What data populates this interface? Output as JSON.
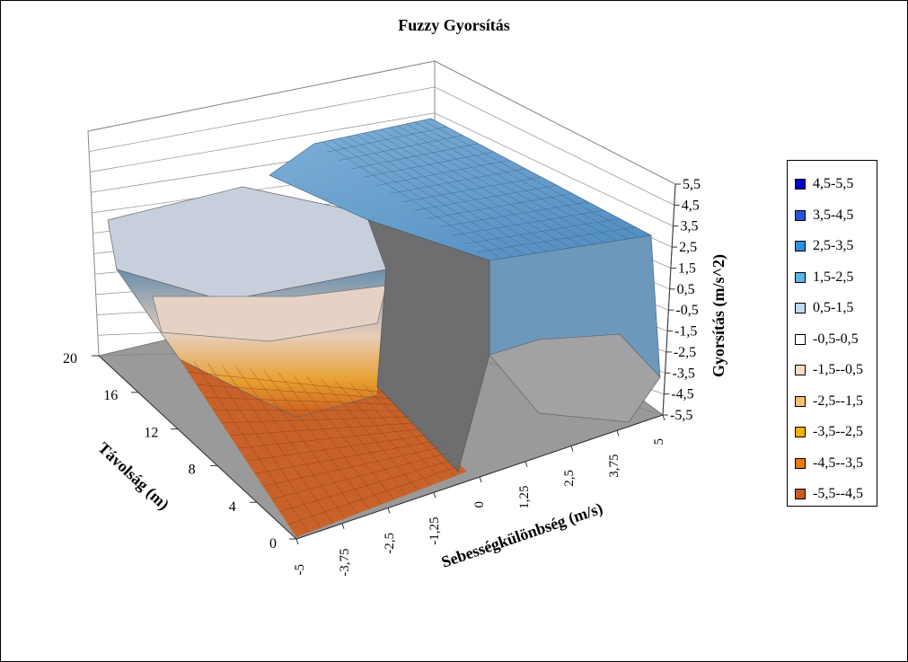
{
  "chart_data": {
    "type": "surface",
    "title": "Fuzzy Gyorsítás",
    "xlabel": "Sebességkülönbség (m/s)",
    "ylabel": "Távolság (m)",
    "zlabel": "Gyorsítás (m/s^2)",
    "x_ticks": [
      "-5",
      "-3,75",
      "-2,5",
      "-1,25",
      "0",
      "1,25",
      "2,5",
      "3,75",
      "5"
    ],
    "y_ticks": [
      "0",
      "4",
      "8",
      "12",
      "16",
      "20"
    ],
    "z_ticks": [
      "5,5",
      "4,5",
      "3,5",
      "2,5",
      "1,5",
      "0,5",
      "-0,5",
      "-1,5",
      "-2,5",
      "-3,5",
      "-4,5",
      "-5,5"
    ],
    "xlim": [
      -5,
      5
    ],
    "ylim": [
      0,
      20
    ],
    "zlim": [
      -5.5,
      5.5
    ],
    "legend_position": "right",
    "legend": [
      {
        "label": "4,5-5,5",
        "color": "#0000c8"
      },
      {
        "label": "3,5-4,5",
        "color": "#2a52d8"
      },
      {
        "label": "2,5-3,5",
        "color": "#2f8fe0"
      },
      {
        "label": "1,5-2,5",
        "color": "#5ab4e6"
      },
      {
        "label": "0,5-1,5",
        "color": "#c0d8f0"
      },
      {
        "label": "-0,5-0,5",
        "color": "#ffffff"
      },
      {
        "label": "-1,5--0,5",
        "color": "#f5dcc8"
      },
      {
        "label": "-2,5--1,5",
        "color": "#f0c070"
      },
      {
        "label": "-3,5--2,5",
        "color": "#f0b000"
      },
      {
        "label": "-4,5--3,5",
        "color": "#e87a10"
      },
      {
        "label": "-5,5--4,5",
        "color": "#c85a20"
      }
    ]
  }
}
